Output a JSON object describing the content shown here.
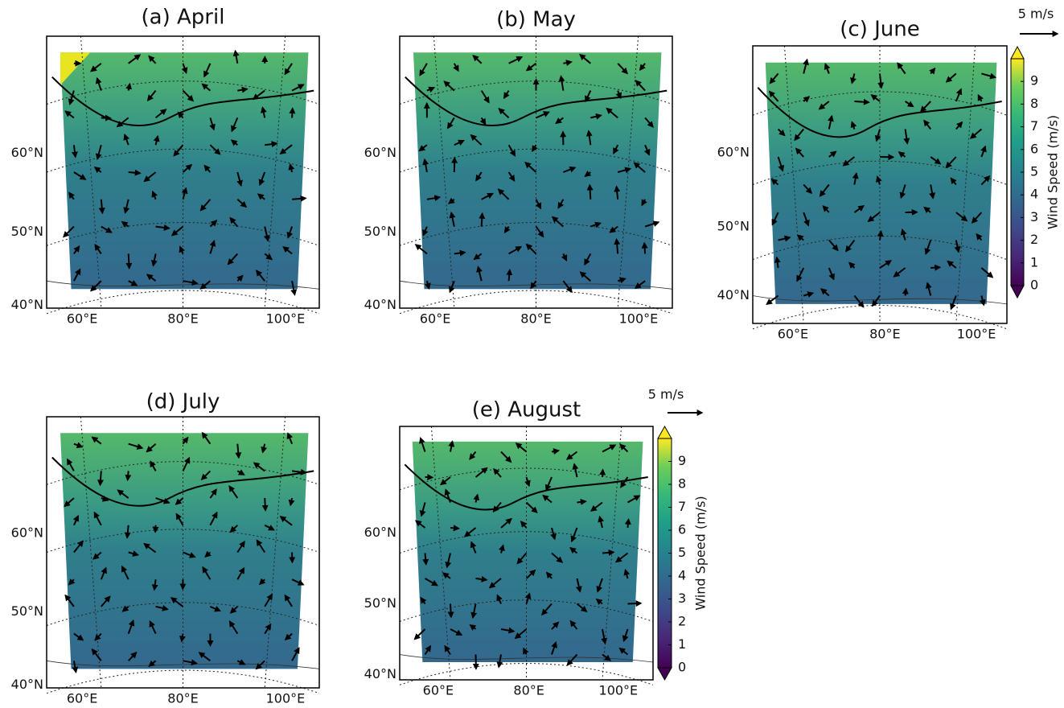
{
  "panels": [
    {
      "title": "(a) April",
      "lat_labels": [
        "60°N",
        "50°N",
        "40°N"
      ],
      "lon_labels": [
        "60°E",
        "80°E",
        "100°E"
      ]
    },
    {
      "title": "(b) May",
      "lat_labels": [
        "60°N",
        "50°N",
        "40°N"
      ],
      "lon_labels": [
        "60°E",
        "80°E",
        "100°E"
      ]
    },
    {
      "title": "(c) June",
      "lat_labels": [
        "60°N",
        "50°N",
        "40°N"
      ],
      "lon_labels": [
        "60°E",
        "80°E",
        "100°E"
      ]
    },
    {
      "title": "(d) July",
      "lat_labels": [
        "60°N",
        "50°N",
        "40°N"
      ],
      "lon_labels": [
        "60°E",
        "80°E",
        "100°E"
      ]
    },
    {
      "title": "(e) August",
      "lat_labels": [
        "60°N",
        "50°N",
        "40°N"
      ],
      "lon_labels": [
        "60°E",
        "80°E",
        "100°E"
      ]
    }
  ],
  "colorbars": [
    {
      "label": "Wind Speed (m/s)",
      "lim": [
        0,
        10
      ],
      "ticks": [
        0,
        1,
        2,
        3,
        4,
        5,
        6,
        7,
        8,
        9
      ]
    },
    {
      "label": "Wind Speed (m/s)",
      "lim": [
        0,
        10
      ],
      "ticks": [
        0,
        1,
        2,
        3,
        4,
        5,
        6,
        7,
        8,
        9
      ]
    }
  ],
  "reference_arrows": [
    {
      "label": "5 m/s"
    },
    {
      "label": "5 m/s"
    }
  ]
}
